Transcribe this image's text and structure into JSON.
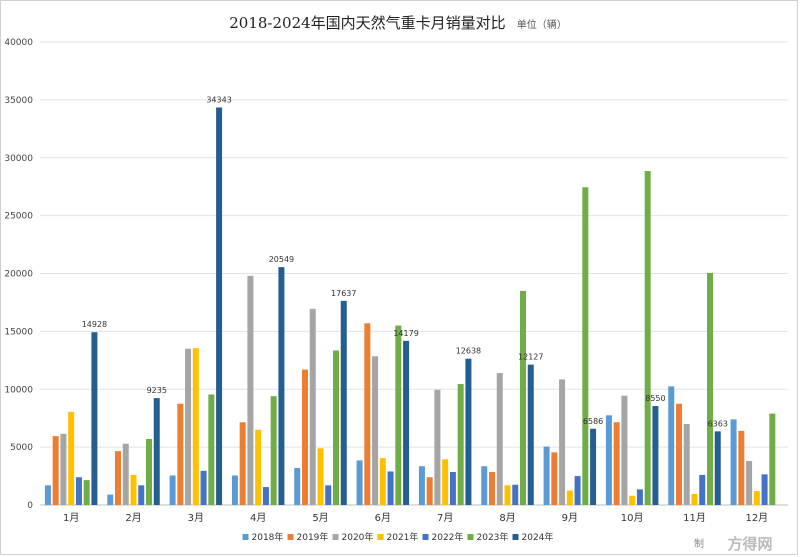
{
  "chart_data": {
    "type": "bar",
    "title": "2018-2024年国内天然气重卡月销量对比",
    "unit": "单位（辆）",
    "categories": [
      "1月",
      "2月",
      "3月",
      "4月",
      "5月",
      "6月",
      "7月",
      "8月",
      "9月",
      "10月",
      "11月",
      "12月"
    ],
    "ylim": [
      0,
      40000
    ],
    "yticks": [
      0,
      5000,
      10000,
      15000,
      20000,
      25000,
      30000,
      35000,
      40000
    ],
    "grid": true,
    "legend_position": "bottom",
    "series": [
      {
        "name": "2018年",
        "color": "#5b9bd5",
        "values": [
          1700,
          900,
          2550,
          2550,
          3200,
          3850,
          3350,
          3350,
          5050,
          7750,
          10250,
          7400
        ]
      },
      {
        "name": "2019年",
        "color": "#ed7d31",
        "values": [
          5950,
          4650,
          8750,
          7150,
          11700,
          15700,
          2400,
          2850,
          4550,
          7150,
          8750,
          6400
        ]
      },
      {
        "name": "2020年",
        "color": "#a5a5a5",
        "values": [
          6150,
          5300,
          13500,
          19800,
          16950,
          12850,
          9950,
          11400,
          10850,
          9450,
          7000,
          3800
        ]
      },
      {
        "name": "2021年",
        "color": "#ffc000",
        "values": [
          8050,
          2600,
          13550,
          6500,
          4900,
          4050,
          3950,
          1700,
          1250,
          800,
          950,
          1200
        ]
      },
      {
        "name": "2022年",
        "color": "#4472c4",
        "values": [
          2400,
          1700,
          2950,
          1550,
          1700,
          2900,
          2850,
          1750,
          2500,
          1350,
          2600,
          2650
        ]
      },
      {
        "name": "2023年",
        "color": "#70ad47",
        "values": [
          2150,
          5700,
          9550,
          9400,
          13350,
          15500,
          10450,
          18500,
          27450,
          28850,
          20050,
          7900
        ]
      },
      {
        "name": "2024年",
        "color": "#255e91",
        "values": [
          14928,
          9235,
          34343,
          20549,
          17637,
          14179,
          12638,
          12127,
          6586,
          8550,
          6363,
          null
        ]
      }
    ],
    "data_labels": {
      "series": "2024年",
      "texts": [
        "14928",
        "9235",
        "34343",
        "20549",
        "17637",
        "14179",
        "12638",
        "12127",
        "6586",
        "8550",
        "6363",
        ""
      ]
    }
  },
  "footer": {
    "left_text": "制",
    "watermark": "方得网"
  }
}
